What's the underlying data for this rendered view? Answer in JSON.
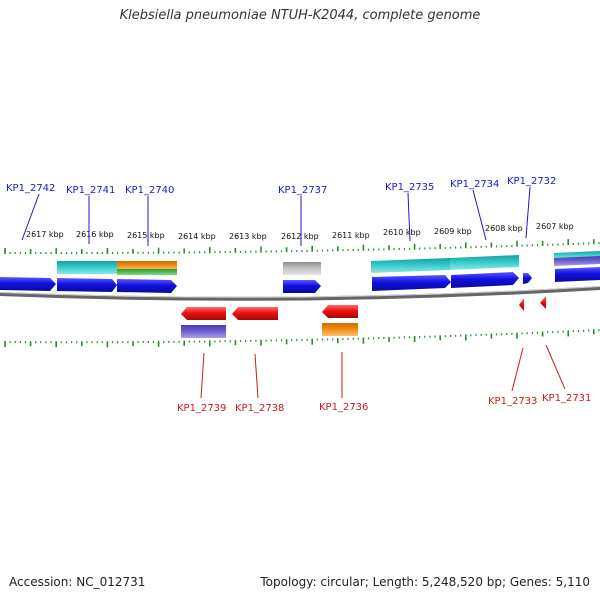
{
  "title": "Klebsiella pneumoniae NTUH-K2044, complete genome",
  "footer": {
    "accession": "Accession: NC_012731",
    "summary": "Topology: circular; Length: 5,248,520 bp; Genes: 5,110"
  },
  "colors": {
    "backbone": "#777777",
    "forward_label": "#1a1acc",
    "reverse_label": "#cc1a1a",
    "tick": "#2a8a2a",
    "cds_forward": "#1010e0",
    "cds_reverse": "#ee1111",
    "teal": "#2cc6c6",
    "orange": "#f08a0e",
    "green": "#44bb44",
    "gray": "#bbbbbb",
    "purple": "#6a5ccc"
  },
  "scale": {
    "unit": "kbp",
    "labels": [
      "2617 kbp",
      "2616 kbp",
      "2615 kbp",
      "2614 kbp",
      "2613 kbp",
      "2612 kbp",
      "2611 kbp",
      "2610 kbp",
      "2609 kbp",
      "2608 kbp",
      "2607 kbp"
    ]
  },
  "genes": {
    "forward": [
      "KP1_2742",
      "KP1_2741",
      "KP1_2740",
      "KP1_2737",
      "KP1_2735",
      "KP1_2734",
      "KP1_2732"
    ],
    "reverse": [
      "KP1_2739",
      "KP1_2738",
      "KP1_2736",
      "KP1_2733",
      "KP1_2731"
    ]
  }
}
